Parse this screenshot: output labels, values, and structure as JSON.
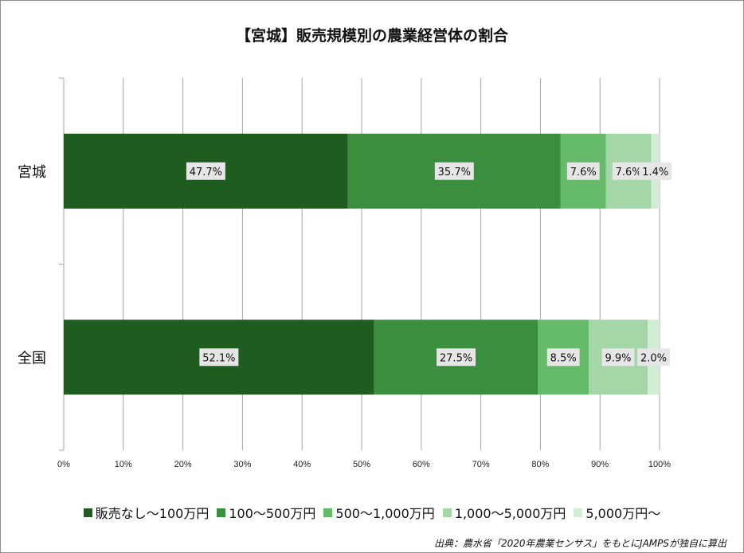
{
  "title": "【宮城】販売規模別の農業経営体の割合",
  "source": "出典：農水省「2020年農業センサス」をもとにJAMPSが独自に算出",
  "chart_data": {
    "type": "bar",
    "orientation": "horizontal",
    "stacked": "percent",
    "categories": [
      "宮城",
      "全国"
    ],
    "series": [
      {
        "name": "販売なし～100万円",
        "color": "#1e5c20",
        "values": [
          47.7,
          52.1
        ],
        "labels": [
          "47.7%",
          "52.1%"
        ]
      },
      {
        "name": "100～500万円",
        "color": "#3a8e3e",
        "values": [
          35.7,
          27.5
        ],
        "labels": [
          "35.7%",
          "27.5%"
        ]
      },
      {
        "name": "500～1,000万円",
        "color": "#66bb6a",
        "values": [
          7.6,
          8.5
        ],
        "labels": [
          "7.6%",
          "8.5%"
        ]
      },
      {
        "name": "1,000～5,000万円",
        "color": "#a5d6a7",
        "values": [
          7.6,
          9.9
        ],
        "labels": [
          "7.6%",
          "9.9%"
        ]
      },
      {
        "name": "5,000万円～",
        "color": "#d3ecd4",
        "values": [
          1.4,
          2.0
        ],
        "labels": [
          "1.4%",
          "2.0%"
        ]
      }
    ],
    "x_ticks": [
      "0%",
      "10%",
      "20%",
      "30%",
      "40%",
      "50%",
      "60%",
      "70%",
      "80%",
      "90%",
      "100%"
    ],
    "xlim": [
      0,
      100
    ],
    "grid": true,
    "legend_position": "bottom"
  }
}
